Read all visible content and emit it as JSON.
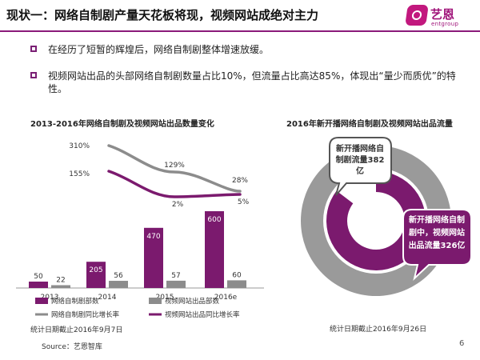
{
  "header": {
    "title": "现状一：网络自制剧产量天花板将现，视频网站成绝对主力",
    "logo_cn": "艺恩",
    "logo_en": "entgroup"
  },
  "bullets": [
    "在经历了短暂的辉煌后，网络自制剧整体增速放缓。",
    "视频网站出品的头部网络自制剧数量占比10%，但流量占比高达85%，体现出“量少而质优”的特性。"
  ],
  "colors": {
    "purple": "#7b1a6e",
    "gray": "#8c8c8c",
    "light_gray": "#c8c8c8",
    "accent": "#8a1a7a"
  },
  "chart_data": [
    {
      "type": "bar",
      "title": "2013-2016年网络自制剧及视频网站出品数量变化",
      "categories": [
        "2013",
        "2014",
        "2015",
        "2016e"
      ],
      "series": [
        {
          "name": "网络自制剧部数",
          "values": [
            50,
            205,
            470,
            600
          ],
          "color": "#7b1a6e"
        },
        {
          "name": "视频网站出品部数",
          "values": [
            22,
            56,
            57,
            60
          ],
          "color": "#8c8c8c"
        }
      ],
      "lines": [
        {
          "name": "网络自制剧同比增长率",
          "points": [
            [
              2014,
              "310%"
            ],
            [
              2015,
              "129%"
            ],
            [
              2016,
              "28%"
            ]
          ],
          "color": "#8c8c8c"
        },
        {
          "name": "视频网站出品同比增长率",
          "points": [
            [
              2014,
              "155%"
            ],
            [
              2015,
              "2%"
            ],
            [
              2016,
              "5%"
            ]
          ],
          "color": "#7b1a6e"
        }
      ],
      "footnote": "统计日期截止2016年9月7日"
    },
    {
      "type": "pie",
      "title": "2016年新开播网络自制剧及视频网站出品流量",
      "slices": [
        {
          "label": "新开播网络自制剧流量382亿",
          "value": 382,
          "color": "#9a9a9a"
        },
        {
          "label": "新开播网络自制剧中，视频网站出品流量326亿",
          "value": 326,
          "color": "#7b1a6e"
        }
      ],
      "callouts": {
        "outer": "新开播网络自制剧流量382亿",
        "inner": "新开播网络自制剧中，视频网站出品流量326亿"
      },
      "footnote": "统计日期截止2016年9月26日"
    }
  ],
  "footer": {
    "source": "Source：艺恩智库",
    "page": "6"
  }
}
